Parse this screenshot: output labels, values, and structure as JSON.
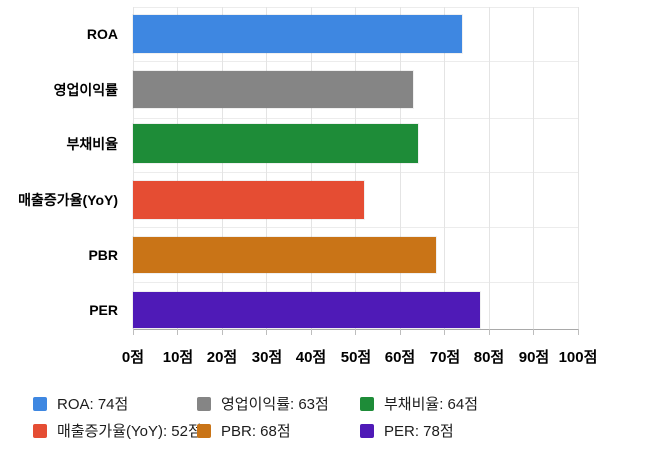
{
  "chart_data": {
    "type": "bar",
    "orientation": "horizontal",
    "title": "",
    "categories": [
      "ROA",
      "영업이익률",
      "부채비율",
      "매출증가율(YoY)",
      "PBR",
      "PER"
    ],
    "values": [
      74,
      63,
      64,
      52,
      68,
      78
    ],
    "value_unit": "점",
    "xlim": [
      0,
      100
    ],
    "x_tick_step": 10,
    "x_tick_labels": [
      "0점",
      "10점",
      "20점",
      "30점",
      "40점",
      "50점",
      "60점",
      "70점",
      "80점",
      "90점",
      "100점"
    ],
    "bar_colors": [
      "#3e87e1",
      "#858585",
      "#1e8c38",
      "#e54d33",
      "#c97417",
      "#4f1ab7"
    ],
    "grid": true,
    "legend_position": "bottom",
    "legend": [
      {
        "label": "ROA: 74점",
        "color": "#3e87e1"
      },
      {
        "label": "영업이익률: 63점",
        "color": "#858585"
      },
      {
        "label": "부채비율: 64점",
        "color": "#1e8c38"
      },
      {
        "label": "매출증가율(YoY): 52점",
        "color": "#e54d33"
      },
      {
        "label": "PBR: 68점",
        "color": "#c97417"
      },
      {
        "label": "PER: 78점",
        "color": "#4f1ab7"
      }
    ]
  },
  "colors": {
    "background": "#ffffff",
    "gridline": "#ececec",
    "axis_line": "#a9a9a9",
    "label_text": "#000000",
    "legend_text": "#1c1c1c"
  }
}
